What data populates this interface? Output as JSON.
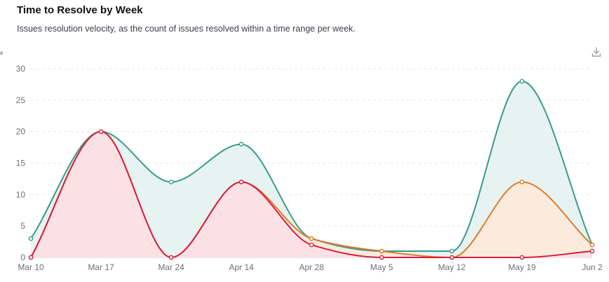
{
  "header": {
    "title": "Time to Resolve by Week",
    "subtitle": "Issues resolution velocity, as the count of issues resolved within a time range per week."
  },
  "icons": {
    "download": "download-icon",
    "left_edge": "collapse-icon"
  },
  "colors": {
    "teal": "#3a9a8c",
    "orange": "#e07b2d",
    "red": "#d61f3f",
    "teal_fill": "#e3f2ee",
    "orange_fill": "#fdeada",
    "red_fill": "#fbe0e4"
  },
  "chart_data": {
    "type": "area",
    "x": [
      "Mar 10",
      "Mar 17",
      "Mar 24",
      "Apr 14",
      "Apr 28",
      "May 5",
      "May 12",
      "May 19",
      "Jun 2"
    ],
    "ylim": [
      0,
      30
    ],
    "yticks": [
      0,
      5,
      10,
      15,
      20,
      25,
      30
    ],
    "grid": true,
    "series": [
      {
        "color": "#3a9a8c",
        "fill": "#e3f2ee",
        "values": [
          3,
          20,
          12,
          18,
          3,
          1,
          1,
          28,
          2
        ]
      },
      {
        "color": "#e07b2d",
        "fill": "#fdeada",
        "values": [
          0,
          20,
          0,
          12,
          3,
          1,
          0,
          12,
          2
        ]
      },
      {
        "color": "#d61f3f",
        "fill": "#fbe0e4",
        "values": [
          0,
          20,
          0,
          12,
          2,
          0,
          0,
          0,
          1
        ]
      }
    ]
  }
}
